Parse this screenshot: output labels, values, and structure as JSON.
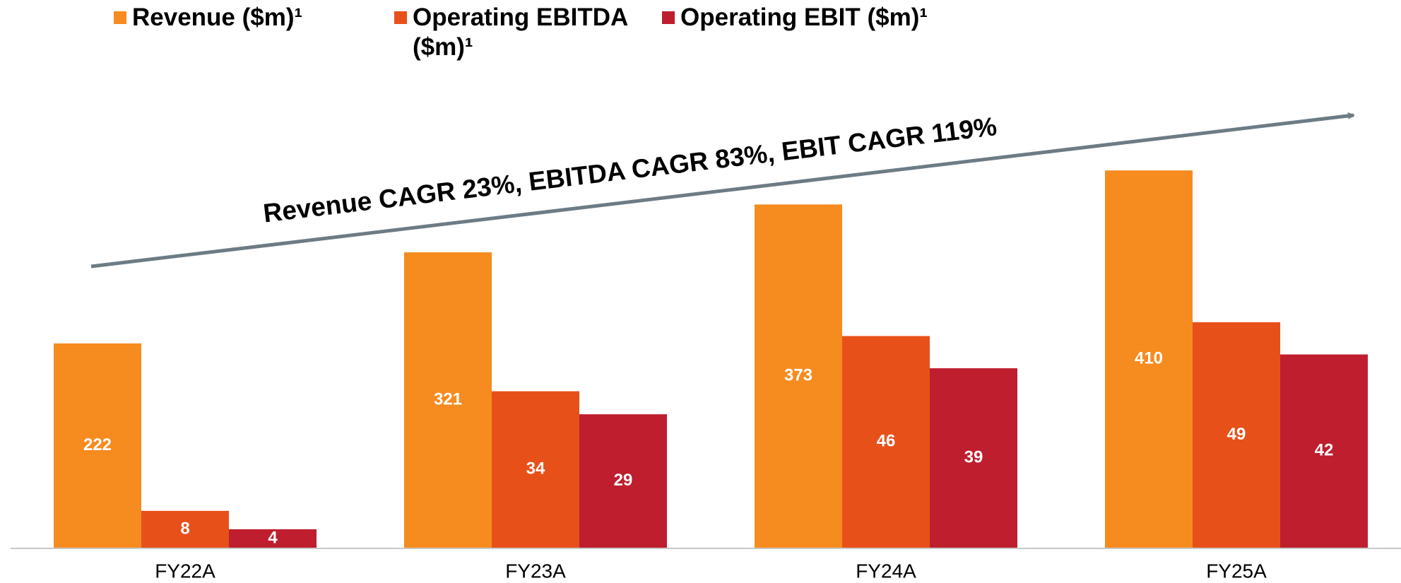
{
  "chart_data": {
    "type": "bar",
    "annotation": "Revenue CAGR 23%, EBITDA CAGR 83%, EBIT CAGR 119%",
    "categories": [
      "FY22A",
      "FY23A",
      "FY24A",
      "FY25A"
    ],
    "series": [
      {
        "name": "Revenue ($m)¹",
        "color": "#f68b1f",
        "values": [
          222,
          321,
          373,
          410
        ]
      },
      {
        "name": "Operating EBITDA ($m)¹",
        "color": "#e8501a",
        "values": [
          8,
          34,
          46,
          49
        ],
        "axis": "y2"
      },
      {
        "name": "Operating EBIT ($m)¹",
        "color": "#be1e2d",
        "values": [
          4,
          29,
          39,
          42
        ],
        "axis": "y2"
      }
    ],
    "ylim": [
      0,
      500
    ],
    "y2lim": [
      0,
      100
    ],
    "legend": "top"
  }
}
